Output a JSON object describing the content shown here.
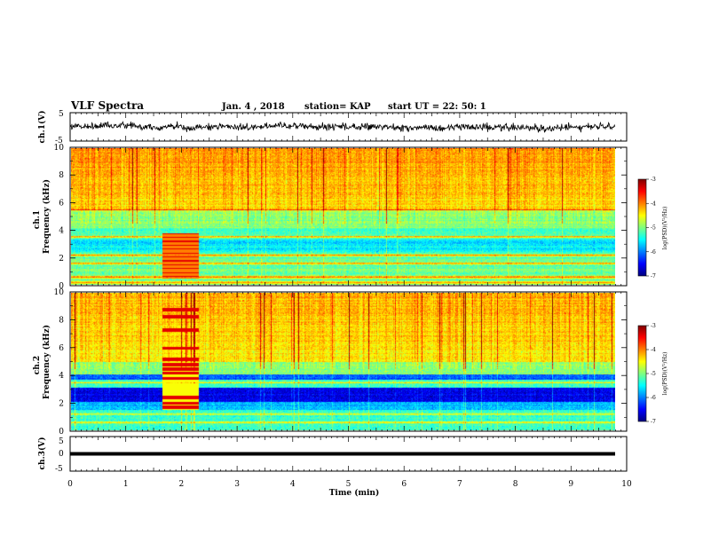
{
  "header": {
    "title": "VLF Spectra",
    "date": "Jan. 4  , 2018",
    "station": "station= KAP",
    "start": "start  UT  =   22: 50: 1"
  },
  "chart_data": [
    {
      "type": "line",
      "panel": "ch1-voltage",
      "ylabel": "ch.1(V)",
      "ylim": [
        -5,
        5
      ],
      "yticks": [
        "5",
        "-5"
      ],
      "xlim": [
        0,
        10
      ],
      "note": "noisy waveform fluctuating roughly between -3 and +3 V"
    },
    {
      "type": "heatmap",
      "panel": "ch1-spectrogram",
      "ylabel": "ch.1\nFrequency (kHz)",
      "ylim": [
        0,
        10
      ],
      "yticks": [
        "0",
        "2",
        "4",
        "6",
        "8",
        "10"
      ],
      "xlim": [
        0,
        10
      ],
      "colorbar": {
        "label": "log(PSD)(V²/Hz)",
        "ticks": [
          "-3",
          "-4",
          "-5",
          "-6",
          "-7"
        ],
        "range": [
          -7,
          -3
        ]
      },
      "burst_interval_min": [
        1.65,
        2.3
      ]
    },
    {
      "type": "heatmap",
      "panel": "ch2-spectrogram",
      "ylabel": "ch.2\nFrequency (kHz)",
      "ylim": [
        0,
        10
      ],
      "yticks": [
        "0",
        "2",
        "4",
        "6",
        "8",
        "10"
      ],
      "xlim": [
        0,
        10
      ],
      "colorbar": {
        "label": "log(PSD)(V²/Hz)",
        "ticks": [
          "-3",
          "-4",
          "-5",
          "-6",
          "-7"
        ],
        "range": [
          -7,
          -3
        ]
      },
      "burst_interval_min": [
        1.65,
        2.3
      ]
    },
    {
      "type": "line",
      "panel": "ch3-voltage",
      "ylabel": "ch.3(V)",
      "ylim": [
        -5,
        5
      ],
      "yticks": [
        "5",
        "0",
        "-5"
      ],
      "xlim": [
        0,
        10
      ],
      "constant_value": 0,
      "note": "flat line near 0 V"
    }
  ],
  "xaxis": {
    "label": "Time (min)",
    "ticks": [
      "0",
      "1",
      "2",
      "3",
      "4",
      "5",
      "6",
      "7",
      "8",
      "9",
      "10"
    ]
  },
  "colors": {
    "jet": [
      "#00007f",
      "#0000ff",
      "#007fff",
      "#00ffff",
      "#7fff7f",
      "#ffff00",
      "#ff7f00",
      "#ff0000",
      "#7f0000"
    ]
  }
}
